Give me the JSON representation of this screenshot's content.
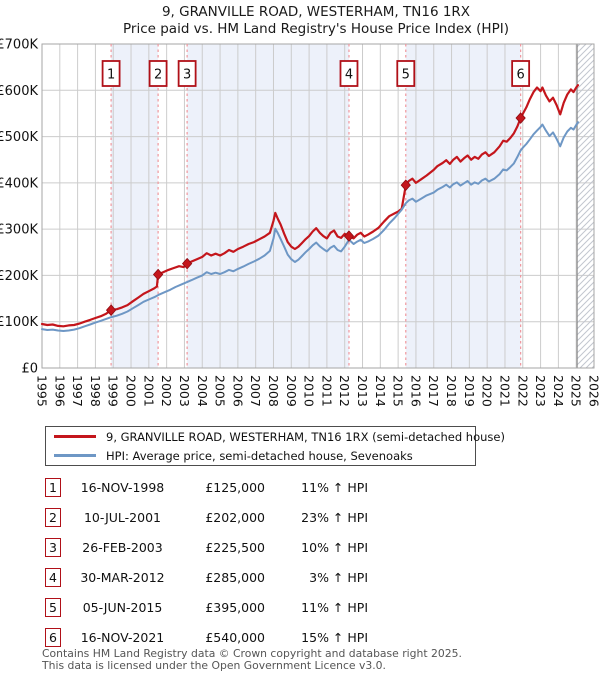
{
  "title": {
    "line1": "9, GRANVILLE ROAD, WESTERHAM, TN16 1RX",
    "line2": "Price paid vs. HM Land Registry's House Price Index (HPI)"
  },
  "legend": {
    "series1": "9, GRANVILLE ROAD, WESTERHAM, TN16 1RX (semi-detached house)",
    "series2": "HPI: Average price, semi-detached house, Sevenoaks"
  },
  "footer": {
    "line1": "Contains HM Land Registry data © Crown copyright and database right 2025.",
    "line2": "This data is licensed under the Open Government Licence v3.0."
  },
  "colors": {
    "property_line": "#c4161c",
    "hpi_line": "#6e97c5",
    "marker_fill": "#c4161c",
    "marker_edge": "#8e0b12",
    "band_fill": "#edf1fa",
    "grid": "#cccccc",
    "frame": "#a6a6a6",
    "dashed_sale_line": "#f0969c",
    "sale_box_border": "#b01018",
    "hatch_line": "#c2c6cf",
    "hatch_edge": "#8a8a8a",
    "text": "#111111",
    "footer_text": "#555555"
  },
  "chart_data": {
    "type": "line",
    "title": "9, GRANVILLE ROAD, WESTERHAM, TN16 1RX — Price paid vs. HM Land Registry's House Price Index (HPI)",
    "units": "GBP thousands",
    "xlim": [
      1995,
      2026
    ],
    "ylim": [
      0,
      700
    ],
    "x_ticks": [
      1995,
      1996,
      1997,
      1998,
      1999,
      2000,
      2001,
      2002,
      2003,
      2004,
      2005,
      2006,
      2007,
      2008,
      2009,
      2010,
      2011,
      2012,
      2013,
      2014,
      2015,
      2016,
      2017,
      2018,
      2019,
      2020,
      2021,
      2022,
      2023,
      2024,
      2025,
      2026
    ],
    "y_ticks": [
      {
        "value": 0,
        "label": "£0"
      },
      {
        "value": 100,
        "label": "£100K"
      },
      {
        "value": 200,
        "label": "£200K"
      },
      {
        "value": 300,
        "label": "£300K"
      },
      {
        "value": 400,
        "label": "£400K"
      },
      {
        "value": 500,
        "label": "£500K"
      },
      {
        "value": 600,
        "label": "£600K"
      },
      {
        "value": 700,
        "label": "£700K"
      }
    ],
    "grid": true,
    "legend_position": "below",
    "hatch_start_year": 2025.05,
    "shaded_bands_years": [
      [
        1998.88,
        2001.52
      ],
      [
        2003.15,
        2012.24
      ],
      [
        2015.43,
        2021.88
      ]
    ],
    "series": [
      {
        "name": "9, GRANVILLE ROAD, WESTERHAM, TN16 1RX (semi-detached house)",
        "color_key": "property_line",
        "width": 2.2,
        "points": [
          [
            1995.0,
            95
          ],
          [
            1995.3,
            93
          ],
          [
            1995.6,
            94
          ],
          [
            1995.9,
            91
          ],
          [
            1996.2,
            90
          ],
          [
            1996.5,
            92
          ],
          [
            1996.8,
            93
          ],
          [
            1997.1,
            96
          ],
          [
            1997.4,
            100
          ],
          [
            1997.7,
            104
          ],
          [
            1998.0,
            108
          ],
          [
            1998.3,
            112
          ],
          [
            1998.6,
            117
          ],
          [
            1998.88,
            125
          ],
          [
            1999.2,
            127
          ],
          [
            1999.5,
            131
          ],
          [
            1999.8,
            136
          ],
          [
            2000.1,
            144
          ],
          [
            2000.4,
            152
          ],
          [
            2000.7,
            160
          ],
          [
            2001.0,
            166
          ],
          [
            2001.3,
            172
          ],
          [
            2001.45,
            176
          ],
          [
            2001.52,
            202
          ],
          [
            2001.8,
            207
          ],
          [
            2002.1,
            212
          ],
          [
            2002.4,
            216
          ],
          [
            2002.7,
            220
          ],
          [
            2002.95,
            218
          ],
          [
            2003.15,
            225.5
          ],
          [
            2003.4,
            230
          ],
          [
            2003.7,
            235
          ],
          [
            2004.0,
            240
          ],
          [
            2004.25,
            248
          ],
          [
            2004.5,
            243
          ],
          [
            2004.75,
            247
          ],
          [
            2005.0,
            243
          ],
          [
            2005.25,
            248
          ],
          [
            2005.5,
            255
          ],
          [
            2005.75,
            251
          ],
          [
            2006.0,
            257
          ],
          [
            2006.3,
            262
          ],
          [
            2006.6,
            268
          ],
          [
            2006.9,
            272
          ],
          [
            2007.2,
            278
          ],
          [
            2007.5,
            284
          ],
          [
            2007.8,
            292
          ],
          [
            2008.0,
            318
          ],
          [
            2008.1,
            335
          ],
          [
            2008.25,
            322
          ],
          [
            2008.4,
            310
          ],
          [
            2008.6,
            290
          ],
          [
            2008.8,
            272
          ],
          [
            2009.0,
            262
          ],
          [
            2009.2,
            257
          ],
          [
            2009.4,
            262
          ],
          [
            2009.6,
            270
          ],
          [
            2009.8,
            278
          ],
          [
            2010.0,
            285
          ],
          [
            2010.2,
            295
          ],
          [
            2010.4,
            302
          ],
          [
            2010.6,
            292
          ],
          [
            2010.8,
            285
          ],
          [
            2011.0,
            280
          ],
          [
            2011.2,
            292
          ],
          [
            2011.4,
            297
          ],
          [
            2011.6,
            284
          ],
          [
            2011.8,
            281
          ],
          [
            2012.0,
            290
          ],
          [
            2012.24,
            285
          ],
          [
            2012.5,
            280
          ],
          [
            2012.7,
            288
          ],
          [
            2012.9,
            292
          ],
          [
            2013.1,
            284
          ],
          [
            2013.3,
            288
          ],
          [
            2013.6,
            295
          ],
          [
            2013.9,
            303
          ],
          [
            2014.2,
            316
          ],
          [
            2014.5,
            328
          ],
          [
            2014.8,
            334
          ],
          [
            2015.0,
            338
          ],
          [
            2015.2,
            344
          ],
          [
            2015.43,
            395
          ],
          [
            2015.6,
            404
          ],
          [
            2015.8,
            409
          ],
          [
            2016.0,
            400
          ],
          [
            2016.3,
            408
          ],
          [
            2016.6,
            416
          ],
          [
            2017.0,
            428
          ],
          [
            2017.2,
            436
          ],
          [
            2017.5,
            443
          ],
          [
            2017.7,
            449
          ],
          [
            2017.9,
            441
          ],
          [
            2018.1,
            450
          ],
          [
            2018.3,
            456
          ],
          [
            2018.5,
            446
          ],
          [
            2018.7,
            453
          ],
          [
            2018.9,
            459
          ],
          [
            2019.1,
            450
          ],
          [
            2019.3,
            456
          ],
          [
            2019.5,
            452
          ],
          [
            2019.7,
            461
          ],
          [
            2019.9,
            466
          ],
          [
            2020.1,
            458
          ],
          [
            2020.4,
            466
          ],
          [
            2020.7,
            479
          ],
          [
            2020.9,
            491
          ],
          [
            2021.1,
            489
          ],
          [
            2021.3,
            497
          ],
          [
            2021.5,
            507
          ],
          [
            2021.7,
            522
          ],
          [
            2021.88,
            540
          ],
          [
            2022.0,
            549
          ],
          [
            2022.2,
            563
          ],
          [
            2022.4,
            581
          ],
          [
            2022.6,
            596
          ],
          [
            2022.8,
            606
          ],
          [
            2023.0,
            598
          ],
          [
            2023.1,
            606
          ],
          [
            2023.3,
            589
          ],
          [
            2023.5,
            576
          ],
          [
            2023.7,
            584
          ],
          [
            2023.9,
            568
          ],
          [
            2024.0,
            558
          ],
          [
            2024.1,
            548
          ],
          [
            2024.3,
            573
          ],
          [
            2024.5,
            591
          ],
          [
            2024.7,
            602
          ],
          [
            2024.85,
            596
          ],
          [
            2025.0,
            606
          ],
          [
            2025.1,
            611
          ]
        ]
      },
      {
        "name": "HPI: Average price, semi-detached house, Sevenoaks",
        "color_key": "hpi_line",
        "width": 2.0,
        "points": [
          [
            1995.0,
            84
          ],
          [
            1995.3,
            82
          ],
          [
            1995.6,
            83
          ],
          [
            1995.9,
            81
          ],
          [
            1996.2,
            80
          ],
          [
            1996.5,
            81
          ],
          [
            1996.8,
            83
          ],
          [
            1997.1,
            86
          ],
          [
            1997.4,
            90
          ],
          [
            1997.7,
            94
          ],
          [
            1998.0,
            98
          ],
          [
            1998.3,
            102
          ],
          [
            1998.6,
            106
          ],
          [
            1998.9,
            110
          ],
          [
            1999.2,
            113
          ],
          [
            1999.5,
            117
          ],
          [
            1999.8,
            122
          ],
          [
            2000.1,
            129
          ],
          [
            2000.4,
            136
          ],
          [
            2000.7,
            143
          ],
          [
            2001.0,
            148
          ],
          [
            2001.3,
            153
          ],
          [
            2001.6,
            159
          ],
          [
            2001.9,
            164
          ],
          [
            2002.2,
            169
          ],
          [
            2002.5,
            175
          ],
          [
            2002.8,
            180
          ],
          [
            2003.1,
            185
          ],
          [
            2003.4,
            190
          ],
          [
            2003.7,
            195
          ],
          [
            2004.0,
            200
          ],
          [
            2004.25,
            207
          ],
          [
            2004.5,
            203
          ],
          [
            2004.75,
            206
          ],
          [
            2005.0,
            203
          ],
          [
            2005.25,
            207
          ],
          [
            2005.5,
            212
          ],
          [
            2005.75,
            209
          ],
          [
            2006.0,
            214
          ],
          [
            2006.3,
            219
          ],
          [
            2006.6,
            225
          ],
          [
            2006.9,
            230
          ],
          [
            2007.2,
            236
          ],
          [
            2007.5,
            243
          ],
          [
            2007.8,
            253
          ],
          [
            2008.0,
            280
          ],
          [
            2008.1,
            301
          ],
          [
            2008.25,
            291
          ],
          [
            2008.4,
            279
          ],
          [
            2008.6,
            262
          ],
          [
            2008.8,
            245
          ],
          [
            2009.0,
            235
          ],
          [
            2009.2,
            229
          ],
          [
            2009.4,
            234
          ],
          [
            2009.6,
            242
          ],
          [
            2009.8,
            250
          ],
          [
            2010.0,
            257
          ],
          [
            2010.2,
            265
          ],
          [
            2010.4,
            271
          ],
          [
            2010.6,
            263
          ],
          [
            2010.8,
            257
          ],
          [
            2011.0,
            252
          ],
          [
            2011.2,
            260
          ],
          [
            2011.4,
            264
          ],
          [
            2011.6,
            255
          ],
          [
            2011.8,
            252
          ],
          [
            2012.0,
            262
          ],
          [
            2012.24,
            277
          ],
          [
            2012.5,
            268
          ],
          [
            2012.7,
            273
          ],
          [
            2012.9,
            277
          ],
          [
            2013.1,
            270
          ],
          [
            2013.3,
            273
          ],
          [
            2013.6,
            279
          ],
          [
            2013.9,
            286
          ],
          [
            2014.2,
            298
          ],
          [
            2014.5,
            312
          ],
          [
            2014.8,
            324
          ],
          [
            2015.0,
            333
          ],
          [
            2015.2,
            342
          ],
          [
            2015.43,
            356
          ],
          [
            2015.6,
            362
          ],
          [
            2015.8,
            366
          ],
          [
            2016.0,
            359
          ],
          [
            2016.3,
            366
          ],
          [
            2016.6,
            373
          ],
          [
            2017.0,
            379
          ],
          [
            2017.2,
            385
          ],
          [
            2017.5,
            391
          ],
          [
            2017.7,
            396
          ],
          [
            2017.9,
            390
          ],
          [
            2018.1,
            397
          ],
          [
            2018.3,
            401
          ],
          [
            2018.5,
            394
          ],
          [
            2018.7,
            399
          ],
          [
            2018.9,
            404
          ],
          [
            2019.1,
            396
          ],
          [
            2019.3,
            401
          ],
          [
            2019.5,
            398
          ],
          [
            2019.7,
            405
          ],
          [
            2019.9,
            409
          ],
          [
            2020.1,
            403
          ],
          [
            2020.4,
            409
          ],
          [
            2020.7,
            419
          ],
          [
            2020.9,
            429
          ],
          [
            2021.1,
            427
          ],
          [
            2021.3,
            434
          ],
          [
            2021.5,
            442
          ],
          [
            2021.7,
            456
          ],
          [
            2021.88,
            470
          ],
          [
            2022.0,
            476
          ],
          [
            2022.2,
            484
          ],
          [
            2022.4,
            494
          ],
          [
            2022.6,
            505
          ],
          [
            2022.8,
            513
          ],
          [
            2023.0,
            521
          ],
          [
            2023.1,
            526
          ],
          [
            2023.3,
            513
          ],
          [
            2023.5,
            501
          ],
          [
            2023.7,
            509
          ],
          [
            2023.9,
            495
          ],
          [
            2024.0,
            487
          ],
          [
            2024.1,
            479
          ],
          [
            2024.3,
            498
          ],
          [
            2024.5,
            511
          ],
          [
            2024.7,
            519
          ],
          [
            2024.85,
            515
          ],
          [
            2025.0,
            525
          ],
          [
            2025.1,
            531
          ]
        ]
      }
    ],
    "sales": [
      {
        "label": "1",
        "date": "16-NOV-1998",
        "price": "£125,000",
        "hpi": "11% ↑ HPI",
        "x_year": 1998.88,
        "y_value": 125
      },
      {
        "label": "2",
        "date": "10-JUL-2001",
        "price": "£202,000",
        "hpi": "23% ↑ HPI",
        "x_year": 2001.52,
        "y_value": 202
      },
      {
        "label": "3",
        "date": "26-FEB-2003",
        "price": "£225,500",
        "hpi": "10% ↑ HPI",
        "x_year": 2003.15,
        "y_value": 225.5
      },
      {
        "label": "4",
        "date": "30-MAR-2012",
        "price": "£285,000",
        "hpi": "3% ↑ HPI",
        "x_year": 2012.24,
        "y_value": 285
      },
      {
        "label": "5",
        "date": "05-JUN-2015",
        "price": "£395,000",
        "hpi": "11% ↑ HPI",
        "x_year": 2015.43,
        "y_value": 395
      },
      {
        "label": "6",
        "date": "16-NOV-2021",
        "price": "£540,000",
        "hpi": "15% ↑ HPI",
        "x_year": 2021.88,
        "y_value": 540
      }
    ]
  }
}
